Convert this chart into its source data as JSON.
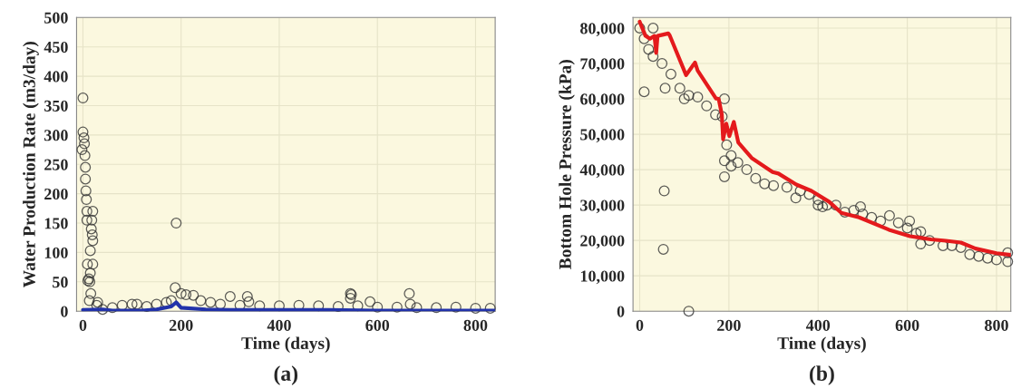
{
  "chart_data": [
    {
      "type": "scatter",
      "title": "(a)",
      "xlabel": "Time (days)",
      "ylabel": "Water Production Rate (m3/day)",
      "xlim": [
        -13,
        840
      ],
      "ylim": [
        0,
        500
      ],
      "xticks": [
        0,
        200,
        400,
        600,
        800
      ],
      "yticks": [
        0,
        50,
        100,
        150,
        200,
        250,
        300,
        350,
        400,
        450,
        500
      ],
      "grid": true,
      "series": [
        {
          "marker": "circle",
          "color": "#333333",
          "x": [
            0,
            0,
            2,
            3,
            -2,
            4,
            5,
            5,
            6,
            7,
            8,
            8,
            20,
            18,
            17,
            19,
            20,
            15,
            20,
            9,
            12,
            10,
            14,
            15,
            16,
            13,
            30,
            28,
            190,
            188,
            200,
            210,
            225,
            300,
            335,
            338,
            545,
            547,
            545,
            585,
            665,
            667,
            40,
            60,
            80,
            100,
            110,
            130,
            150,
            170,
            180,
            240,
            260,
            280,
            320,
            360,
            400,
            440,
            480,
            520,
            560,
            600,
            640,
            680,
            720,
            760,
            800,
            830
          ],
          "values": [
            363,
            305,
            295,
            285,
            275,
            265,
            245,
            225,
            205,
            190,
            170,
            155,
            170,
            155,
            140,
            130,
            120,
            103,
            80,
            80,
            55,
            52,
            50,
            65,
            30,
            18,
            15,
            10,
            150,
            40,
            30,
            28,
            27,
            25,
            25,
            16,
            30,
            28,
            22,
            16,
            30,
            12,
            3,
            6,
            10,
            12,
            12,
            8,
            12,
            15,
            18,
            18,
            15,
            12,
            10,
            9,
            9,
            10,
            9,
            8,
            9,
            7,
            7,
            6,
            6,
            7,
            5,
            5
          ]
        },
        {
          "type": "line",
          "color": "#2233aa",
          "x": [
            0,
            40,
            60,
            120,
            150,
            180,
            190,
            200,
            250,
            300,
            400,
            500,
            600,
            700,
            840
          ],
          "values": [
            2,
            3,
            1,
            1,
            3,
            8,
            15,
            6,
            3,
            2,
            2,
            2,
            1,
            1,
            1
          ]
        }
      ]
    },
    {
      "type": "scatter",
      "title": "(b)",
      "xlabel": "Time (days)",
      "ylabel": "Bottom Hole Pressure (kPa)",
      "xlim": [
        -15,
        832
      ],
      "ylim": [
        0,
        83000
      ],
      "xticks": [
        0,
        200,
        400,
        600,
        800
      ],
      "yticks": [
        {
          "value": 0,
          "label": "0"
        },
        {
          "value": 10000,
          "label": "10,000"
        },
        {
          "value": 20000,
          "label": "20,000"
        },
        {
          "value": 30000,
          "label": "30,000"
        },
        {
          "value": 40000,
          "label": "40,000"
        },
        {
          "value": 50000,
          "label": "50,000"
        },
        {
          "value": 60000,
          "label": "60,000"
        },
        {
          "value": 70000,
          "label": "70,000"
        },
        {
          "value": 80000,
          "label": "80,000"
        }
      ],
      "grid": true,
      "series": [
        {
          "marker": "circle",
          "color": "#333333",
          "x": [
            0,
            10,
            20,
            30,
            50,
            70,
            90,
            110,
            130,
            150,
            170,
            185,
            195,
            205,
            220,
            240,
            260,
            280,
            300,
            330,
            360,
            380,
            400,
            420,
            440,
            460,
            480,
            500,
            520,
            540,
            560,
            580,
            600,
            620,
            650,
            680,
            700,
            720,
            740,
            760,
            780,
            800,
            825,
            30,
            10,
            55,
            53,
            110,
            57,
            100,
            190,
            190,
            190,
            205,
            350,
            400,
            410,
            495,
            605,
            630,
            630,
            825
          ],
          "values": [
            80000,
            77000,
            74000,
            72000,
            70000,
            67000,
            63000,
            61000,
            60500,
            58000,
            55500,
            55000,
            47000,
            44000,
            42000,
            40000,
            37500,
            36000,
            35500,
            35000,
            34000,
            33000,
            31500,
            30000,
            30000,
            28000,
            28500,
            27500,
            26500,
            25500,
            27000,
            25000,
            23500,
            22000,
            20000,
            18500,
            18500,
            18000,
            16000,
            15500,
            15000,
            14500,
            14000,
            80000,
            62000,
            34000,
            17500,
            0,
            63000,
            60000,
            60000,
            42500,
            38000,
            41000,
            32000,
            30000,
            29500,
            29500,
            25500,
            22500,
            19000,
            16500
          ]
        },
        {
          "type": "line",
          "color": "#e41a1c",
          "x": [
            0,
            13,
            23,
            33,
            37,
            40,
            64,
            67,
            104,
            124,
            130,
            171,
            177,
            184,
            187,
            194,
            201,
            211,
            221,
            251,
            298,
            311,
            351,
            385,
            425,
            452,
            492,
            559,
            606,
            653,
            686,
            720,
            753,
            800,
            832
          ],
          "values": [
            81800,
            77800,
            77000,
            77800,
            73000,
            77800,
            78500,
            78000,
            66700,
            70300,
            68000,
            60100,
            60000,
            55700,
            48600,
            53000,
            49500,
            53500,
            47700,
            43300,
            39300,
            38900,
            35800,
            34000,
            30900,
            27800,
            26500,
            23000,
            21200,
            20300,
            19900,
            19400,
            17700,
            16400,
            15900
          ]
        }
      ]
    }
  ]
}
